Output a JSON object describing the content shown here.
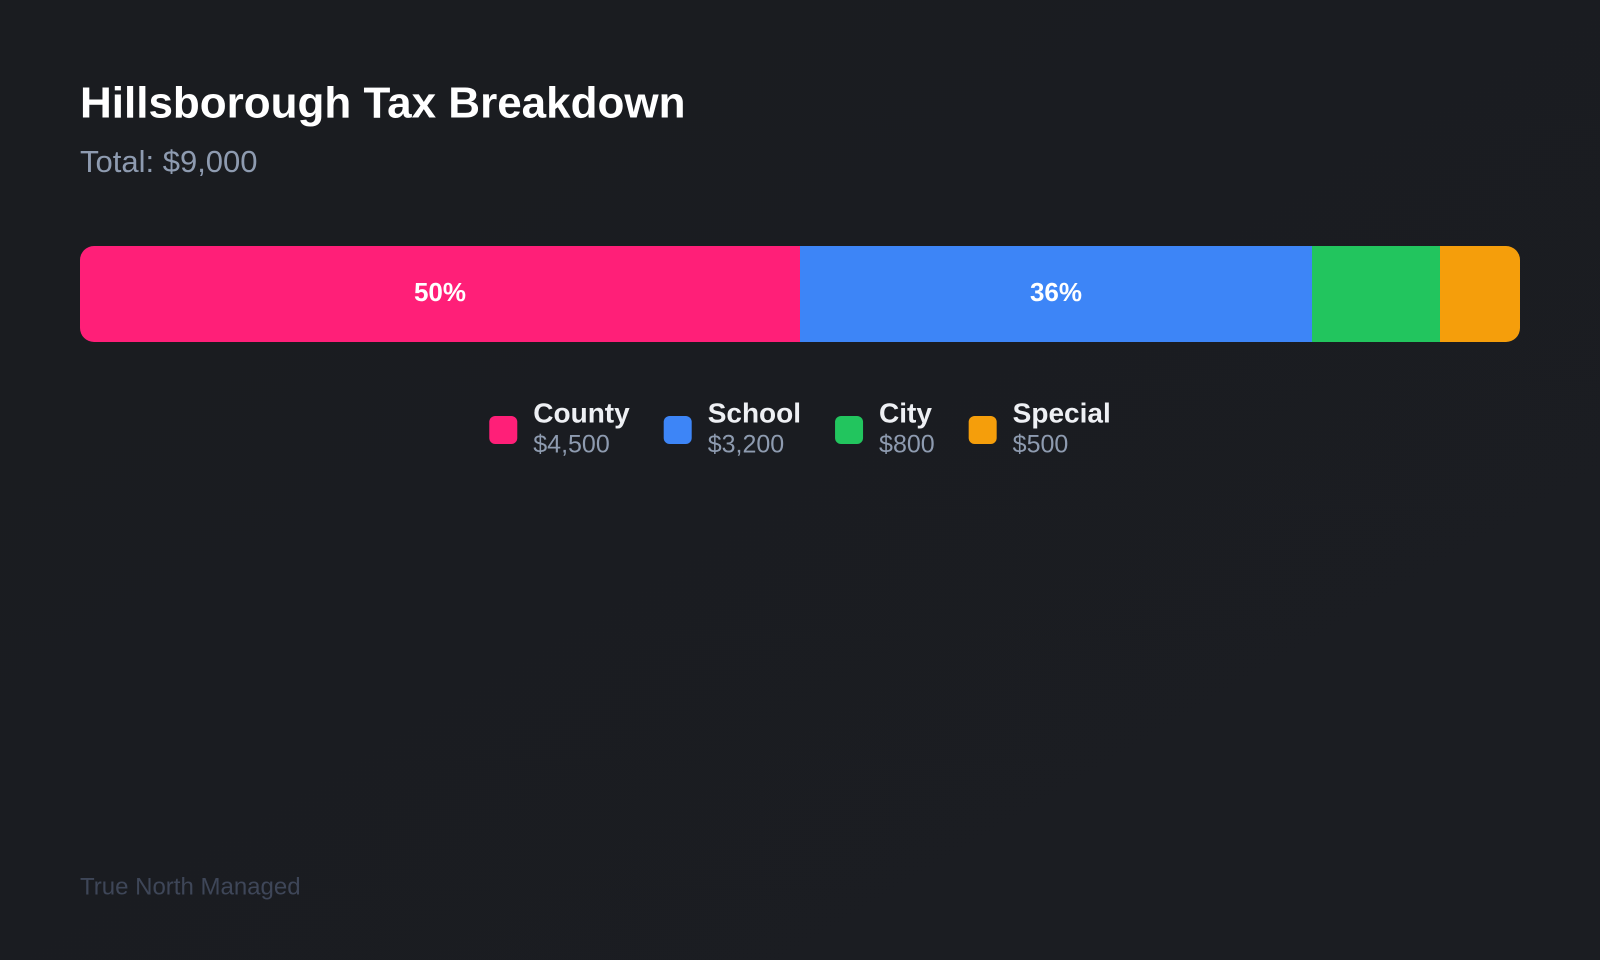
{
  "chart_data": {
    "type": "stacked-bar",
    "orientation": "horizontal",
    "title": "Hillsborough Tax Breakdown",
    "subtitle": "Total: $9,000",
    "series": [
      {
        "name": "County",
        "color": "#ff1f78",
        "values": [
          4500
        ],
        "value_labels": [
          "$4,500"
        ],
        "share_labels": [
          "50%"
        ]
      },
      {
        "name": "School",
        "color": "#3d85f7",
        "values": [
          3200
        ],
        "value_labels": [
          "$3,200"
        ],
        "share_labels": [
          "36%"
        ]
      },
      {
        "name": "City",
        "color": "#22c55e",
        "values": [
          800
        ],
        "value_labels": [
          "$800"
        ]
      },
      {
        "name": "Special",
        "color": "#f59e0b",
        "values": [
          500
        ],
        "value_labels": [
          "$500"
        ]
      }
    ],
    "footer": "True North Managed"
  }
}
